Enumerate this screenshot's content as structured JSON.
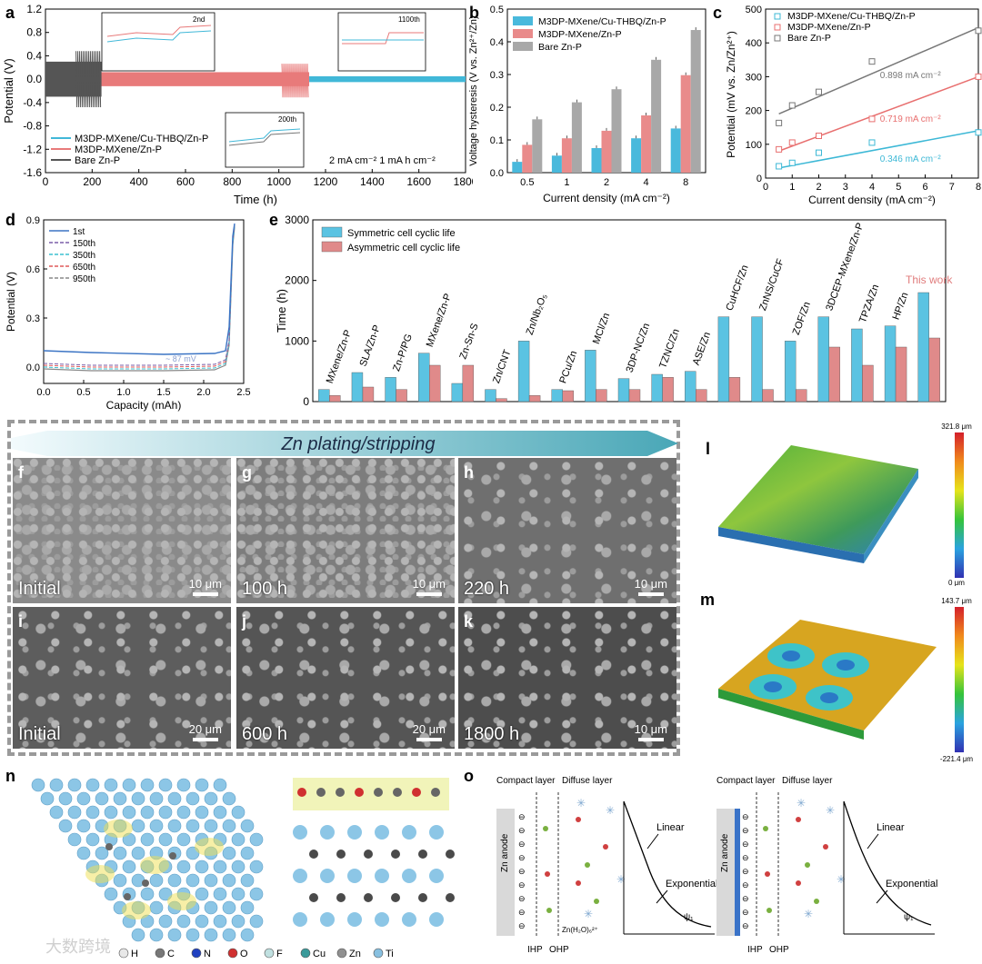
{
  "panel_letters": {
    "a": "a",
    "b": "b",
    "c": "c",
    "d": "d",
    "e": "e",
    "f": "f",
    "g": "g",
    "h": "h",
    "i": "i",
    "j": "j",
    "k": "k",
    "l": "l",
    "m": "m",
    "n": "n",
    "o": "o"
  },
  "chart_data": [
    {
      "id": "a",
      "type": "line",
      "xlabel": "Time (h)",
      "ylabel": "Potential (V)",
      "xlim": [
        0,
        1800
      ],
      "ylim": [
        -1.6,
        1.2
      ],
      "xticks": [
        "0",
        "200",
        "400",
        "600",
        "800",
        "1000",
        "1200",
        "1400",
        "1600",
        "1800"
      ],
      "yticks": [
        "1.2",
        "0.8",
        "0.4",
        "0.0",
        "-0.4",
        "-0.8",
        "-1.2",
        "-1.6"
      ],
      "series": [
        {
          "name": "M3DP-MXene/Cu-THBQ/Zn-P",
          "color": "#41b8d8",
          "x_range": [
            1130,
            1800
          ],
          "amplitude": 0.05
        },
        {
          "name": "M3DP-MXene/Zn-P",
          "color": "#e87a7a",
          "x_range": [
            220,
            1130
          ],
          "amplitude": 0.12
        },
        {
          "name": "Bare Zn-P",
          "color": "#555555",
          "x_range": [
            0,
            240
          ],
          "amplitude": 0.3
        }
      ],
      "annotation": "2 mA cm⁻²    1 mA h cm⁻²",
      "insets": [
        "2nd",
        "1100th",
        "200th"
      ],
      "inset_ylabel": "Potential (V)"
    },
    {
      "id": "b",
      "type": "bar",
      "xlabel": "Current density (mA cm⁻²)",
      "ylabel": "Voltage hysteresis (V vs. Zn²⁺/Zn)",
      "categories": [
        "0.5",
        "1",
        "2",
        "4",
        "8"
      ],
      "ylim": [
        0,
        0.5
      ],
      "yticks": [
        "0.0",
        "0.1",
        "0.2",
        "0.3",
        "0.4",
        "0.5"
      ],
      "series": [
        {
          "name": "M3DP-MXene/Cu-THBQ/Zn-P",
          "color": "#49b9dc",
          "values": [
            0.033,
            0.052,
            0.075,
            0.105,
            0.135
          ]
        },
        {
          "name": "M3DP-MXene/Zn-P",
          "color": "#e98b8b",
          "values": [
            0.085,
            0.105,
            0.128,
            0.175,
            0.298
          ]
        },
        {
          "name": "Bare Zn-P",
          "color": "#a8a8a8",
          "values": [
            0.163,
            0.215,
            0.255,
            0.345,
            0.436
          ]
        }
      ]
    },
    {
      "id": "c",
      "type": "scatter",
      "xlabel": "Current density (mA cm⁻²)",
      "ylabel": "Potential (mV vs. Zn/Zn²⁺)",
      "xlim": [
        0,
        8
      ],
      "ylim": [
        0,
        500
      ],
      "xticks": [
        "0",
        "1",
        "2",
        "3",
        "4",
        "5",
        "6",
        "7",
        "8"
      ],
      "yticks": [
        "0",
        "100",
        "200",
        "300",
        "400",
        "500"
      ],
      "series": [
        {
          "name": "M3DP-MXene/Cu-THBQ/Zn-P",
          "color": "#3cb8d6",
          "x": [
            0.5,
            1,
            2,
            4,
            8
          ],
          "y": [
            35,
            45,
            75,
            105,
            135
          ],
          "fit": [
            30,
            140
          ],
          "slope_label": "0.346 mA cm⁻²"
        },
        {
          "name": "M3DP-MXene/Zn-P",
          "color": "#e86f6f",
          "x": [
            0.5,
            1,
            2,
            4,
            8
          ],
          "y": [
            85,
            105,
            125,
            175,
            300
          ],
          "fit": [
            80,
            300
          ],
          "slope_label": "0.719 mA cm⁻²"
        },
        {
          "name": "Bare Zn-P",
          "color": "#777777",
          "x": [
            0.5,
            1,
            2,
            4,
            8
          ],
          "y": [
            163,
            215,
            255,
            345,
            436
          ],
          "fit": [
            190,
            445
          ],
          "slope_label": "0.898 mA cm⁻²"
        }
      ]
    },
    {
      "id": "d",
      "type": "line",
      "xlabel": "Capacity (mAh)",
      "ylabel": "Potential (V)",
      "xlim": [
        0,
        2.5
      ],
      "ylim": [
        -0.1,
        0.9
      ],
      "xticks": [
        "0.0",
        "0.5",
        "1.0",
        "1.5",
        "2.0",
        "2.5"
      ],
      "yticks": [
        "0.0",
        "0.3",
        "0.6",
        "0.9"
      ],
      "legend": [
        "1st",
        "150th",
        "350th",
        "650th",
        "950th"
      ],
      "legend_colors": [
        "#3b74c4",
        "#7b5ea8",
        "#3cc0d0",
        "#e05a5a",
        "#888888"
      ],
      "annotation": "~ 87 mV"
    },
    {
      "id": "e",
      "type": "bar",
      "ylabel": "Time (h)",
      "ylim": [
        0,
        3000
      ],
      "yticks": [
        "0",
        "1000",
        "2000",
        "3000"
      ],
      "categories": [
        "MXene/Zn-P",
        "SLA/Zn-P",
        "Zn-P/PG",
        "MXene/Zn-P",
        "Zn-Sn-S",
        "Zn/CNT",
        "Zn/Nb₂O₅",
        "PCu/Zn",
        "MCl/Zn",
        "3DP-NC/Zn",
        "TZNC/Zn",
        "ASE/Zn",
        "CuHCF/Zn",
        "ZnNS/CuCF",
        "ZOF/Zn",
        "3DCEP-MXene/Zn-P",
        "TPZA/Zn",
        "HP/Zn",
        "This work"
      ],
      "series": [
        {
          "name": "Symmetric cell cyclic life",
          "color": "#5bc3e2",
          "values": [
            200,
            480,
            400,
            800,
            300,
            200,
            1000,
            200,
            850,
            380,
            450,
            500,
            1400,
            1400,
            1000,
            1400,
            1200,
            1250,
            1800
          ]
        },
        {
          "name": "Asymmetric cell cyclic life",
          "color": "#e08a8a",
          "values": [
            100,
            240,
            200,
            600,
            600,
            50,
            100,
            180,
            200,
            200,
            400,
            200,
            400,
            200,
            200,
            900,
            600,
            900,
            1050
          ]
        }
      ],
      "highlight_label": "This work"
    }
  ],
  "sem": {
    "banner": "Zn plating/stripping",
    "panels": [
      {
        "tag": "f",
        "label": "Initial",
        "scale": "10 μm"
      },
      {
        "tag": "g",
        "label": "100 h",
        "scale": "10 μm"
      },
      {
        "tag": "h",
        "label": "220 h",
        "scale": "10 μm"
      },
      {
        "tag": "i",
        "label": "Initial",
        "scale": "20 μm"
      },
      {
        "tag": "j",
        "label": "600 h",
        "scale": "20 μm"
      },
      {
        "tag": "k",
        "label": "1800 h",
        "scale": "10 μm"
      }
    ]
  },
  "topo": {
    "l": {
      "max": "321.8 μm",
      "min": "0 μm"
    },
    "m": {
      "max": "143.7 μm",
      "min": "-221.4 μm"
    }
  },
  "structure_legend": [
    "H",
    "C",
    "N",
    "O",
    "F",
    "Cu",
    "Zn",
    "Ti"
  ],
  "structure_colors": [
    "#e8e8e8",
    "#777777",
    "#2040c0",
    "#d03030",
    "#c0e0e0",
    "#3a9a9a",
    "#909090",
    "#88c0e0"
  ],
  "edl": {
    "compact": "Compact layer",
    "diffuse": "Diffuse layer",
    "anode": "Zn anode",
    "ihp": "IHP",
    "ohp": "OHP",
    "linear": "Linear",
    "exponential": "Exponential",
    "psi": "ψ₁",
    "ion": "Zn(H₂O)₆²⁺"
  },
  "watermark": "大数跨境"
}
